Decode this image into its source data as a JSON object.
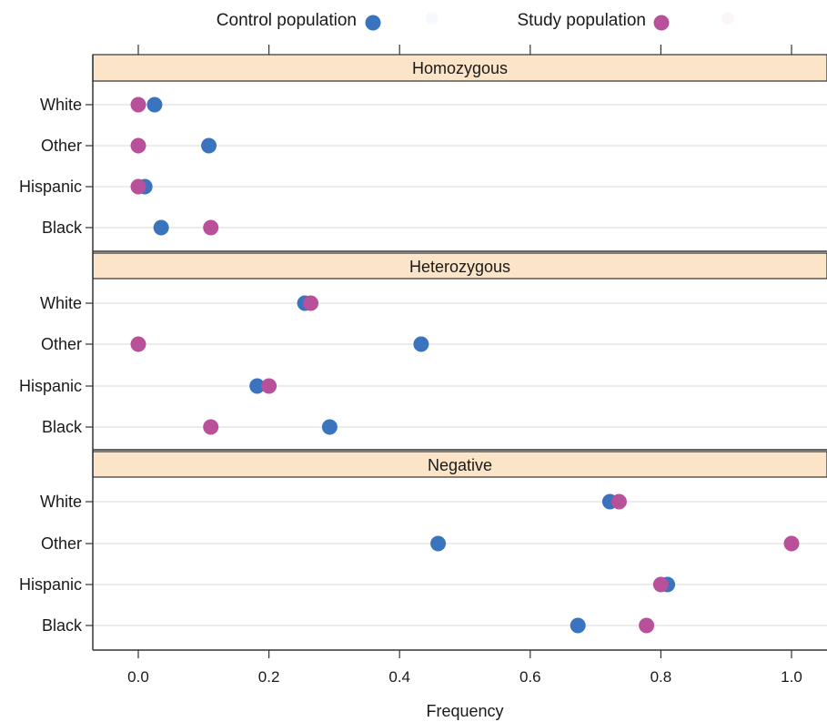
{
  "chart_data": {
    "type": "scatter",
    "subtype": "dot-plot",
    "xlabel": "Frequency",
    "xlim": [
      -0.07,
      1.05
    ],
    "xticks": [
      0.0,
      0.2,
      0.4,
      0.6,
      0.8,
      1.0
    ],
    "xtick_labels": [
      "0.0",
      "0.2",
      "0.4",
      "0.6",
      "0.8",
      "1.0"
    ],
    "categories": [
      "White",
      "Other",
      "Hispanic",
      "Black"
    ],
    "legend_position": "top",
    "legend": [
      {
        "label": "Control population",
        "color": "#3a74be"
      },
      {
        "label": "Study population",
        "color": "#b8509a"
      }
    ],
    "strip_color": "#fce4c8",
    "panels": [
      {
        "title": "Homozygous",
        "series": [
          {
            "name": "Control population",
            "values": [
              0.025,
              0.108,
              0.01,
              0.035
            ]
          },
          {
            "name": "Study population",
            "values": [
              0.0,
              0.0,
              0.0,
              0.111
            ]
          }
        ]
      },
      {
        "title": "Heterozygous",
        "series": [
          {
            "name": "Control population",
            "values": [
              0.255,
              0.433,
              0.182,
              0.293
            ]
          },
          {
            "name": "Study population",
            "values": [
              0.264,
              0.0,
              0.2,
              0.111
            ]
          }
        ]
      },
      {
        "title": "Negative",
        "series": [
          {
            "name": "Control population",
            "values": [
              0.722,
              0.459,
              0.81,
              0.673
            ]
          },
          {
            "name": "Study population",
            "values": [
              0.736,
              1.0,
              0.8,
              0.778
            ]
          }
        ]
      }
    ]
  }
}
